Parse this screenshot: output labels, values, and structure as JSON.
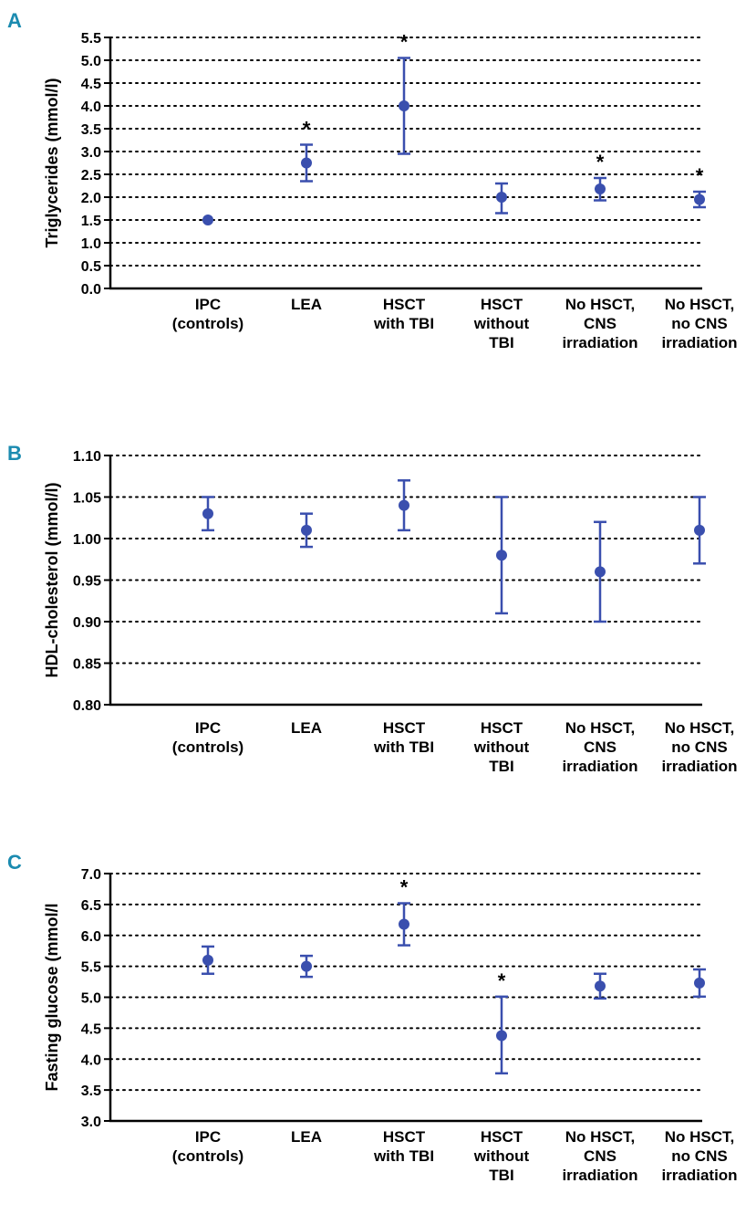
{
  "colors": {
    "series": "#3a4fae",
    "letter": "#1b8bb0",
    "axis": "#000000"
  },
  "chart_data": [
    {
      "panel": "A",
      "type": "scatter",
      "ylabel": "Triglycerides (mmol/l)",
      "ylim": [
        0,
        5.5
      ],
      "yticks": [
        "0.0",
        "0.5",
        "1.0",
        "1.5",
        "2.0",
        "2.5",
        "3.0",
        "3.5",
        "4.0",
        "4.5",
        "5.0",
        "5.5"
      ],
      "grid": "horizontal dotted",
      "categories": [
        [
          "IPC",
          "(controls)"
        ],
        [
          "LEA"
        ],
        [
          "HSCT",
          "with TBI"
        ],
        [
          "HSCT",
          "without",
          "TBI"
        ],
        [
          "No HSCT,",
          "CNS",
          "irradiation"
        ],
        [
          "No HSCT,",
          "no CNS",
          "irradiation"
        ]
      ],
      "values": [
        1.5,
        2.75,
        4.0,
        2.0,
        2.18,
        1.95
      ],
      "err_low": [
        1.5,
        2.35,
        2.95,
        1.65,
        1.93,
        1.78
      ],
      "err_high": [
        1.5,
        3.15,
        5.05,
        2.3,
        2.42,
        2.12
      ],
      "annotations": [
        "",
        "*",
        "*",
        "",
        "*",
        "*"
      ]
    },
    {
      "panel": "B",
      "type": "scatter",
      "ylabel": "HDL-cholesterol (mmol/l)",
      "ylim": [
        0.8,
        1.1
      ],
      "yticks": [
        "0.80",
        "0.85",
        "0.90",
        "0.95",
        "1.00",
        "1.05",
        "1.10"
      ],
      "grid": "horizontal dotted",
      "categories": [
        [
          "IPC",
          "(controls)"
        ],
        [
          "LEA"
        ],
        [
          "HSCT",
          "with TBI"
        ],
        [
          "HSCT",
          "without",
          "TBI"
        ],
        [
          "No HSCT,",
          "CNS",
          "irradiation"
        ],
        [
          "No HSCT,",
          "no CNS",
          "irradiation"
        ]
      ],
      "values": [
        1.03,
        1.01,
        1.04,
        0.98,
        0.96,
        1.01
      ],
      "err_low": [
        1.01,
        0.99,
        1.01,
        0.91,
        0.9,
        0.97
      ],
      "err_high": [
        1.05,
        1.03,
        1.07,
        1.05,
        1.02,
        1.05
      ],
      "annotations": [
        "",
        "",
        "",
        "",
        "",
        ""
      ]
    },
    {
      "panel": "C",
      "type": "scatter",
      "ylabel": "Fasting glucose (mmol/l",
      "ylim": [
        3.0,
        7.0
      ],
      "yticks": [
        "3.0",
        "3.5",
        "4.0",
        "4.5",
        "5.0",
        "5.5",
        "6.0",
        "6.5",
        "7.0"
      ],
      "grid": "horizontal dotted",
      "categories": [
        [
          "IPC",
          "(controls)"
        ],
        [
          "LEA"
        ],
        [
          "HSCT",
          "with TBI"
        ],
        [
          "HSCT",
          "without",
          "TBI"
        ],
        [
          "No HSCT,",
          "CNS",
          "irradiation"
        ],
        [
          "No HSCT,",
          "no CNS",
          "irradiation"
        ]
      ],
      "values": [
        5.6,
        5.5,
        6.18,
        4.38,
        5.18,
        5.23
      ],
      "err_low": [
        5.38,
        5.33,
        5.84,
        3.77,
        4.98,
        5.01
      ],
      "err_high": [
        5.82,
        5.67,
        6.52,
        5.01,
        5.38,
        5.45
      ],
      "annotations": [
        "",
        "",
        "*",
        "*",
        "",
        ""
      ]
    }
  ]
}
